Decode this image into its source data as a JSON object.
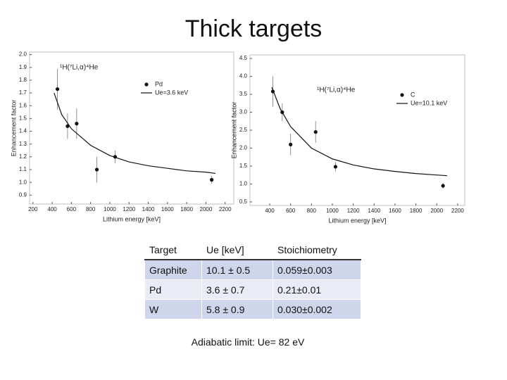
{
  "title": "Thick targets",
  "chart_data": [
    {
      "type": "scatter",
      "x_label": "Lithium energy [keV]",
      "y_label": "Enhancement factor",
      "annotation": "¹H(⁷Li,α)⁴He",
      "legend": "upper right",
      "xlim": [
        165,
        2290
      ],
      "xticks": [
        200,
        400,
        600,
        800,
        1000,
        1200,
        1400,
        1600,
        1800,
        2000,
        2200
      ],
      "ylim": [
        0.83,
        2.02
      ],
      "yticks": [
        0.9,
        {
          "value": 1.0,
          "label": "1.0"
        },
        1.1,
        1.2,
        1.3,
        1.4,
        1.5,
        1.6,
        1.7,
        1.8,
        1.9,
        {
          "value": 2.0,
          "label": "2.0"
        }
      ],
      "series": [
        {
          "name": "Pd",
          "mode": "markers",
          "color": "#111111",
          "x": [
            455,
            560,
            655,
            865,
            1055,
            2060
          ],
          "values": [
            1.73,
            1.44,
            1.46,
            1.1,
            1.2,
            1.02
          ],
          "errors": [
            0.16,
            0.1,
            0.12,
            0.1,
            0.05,
            0.03
          ]
        },
        {
          "name": "Ue=3.6 keV",
          "mode": "lines",
          "color": "#111111",
          "x": [
            420,
            500,
            600,
            800,
            1000,
            1200,
            1400,
            1600,
            1800,
            2000,
            2100
          ],
          "values": [
            1.7,
            1.53,
            1.42,
            1.29,
            1.21,
            1.16,
            1.13,
            1.11,
            1.09,
            1.08,
            1.07
          ]
        }
      ]
    },
    {
      "type": "scatter",
      "x_label": "Lithium energy [keV]",
      "y_label": "Enhancement factor",
      "annotation": "¹H(⁷Li,α)⁴He",
      "legend": "upper right",
      "xlim": [
        211,
        2268
      ],
      "xticks": [
        400,
        600,
        800,
        1000,
        1200,
        1400,
        1600,
        1800,
        2000,
        2200
      ],
      "ylim": [
        0.4,
        4.6
      ],
      "yticks": [
        0.5,
        {
          "value": 1.0,
          "label": "1.0"
        },
        1.5,
        {
          "value": 2.0,
          "label": "2.0"
        },
        2.5,
        {
          "value": 3.0,
          "label": "3.0"
        },
        3.5,
        {
          "value": 4.0,
          "label": "4.0"
        },
        4.5
      ],
      "series": [
        {
          "name": "C",
          "mode": "markers",
          "color": "#111111",
          "x": [
            430,
            520,
            600,
            840,
            1030,
            2060
          ],
          "values": [
            3.58,
            3.0,
            2.1,
            2.45,
            1.48,
            0.95
          ],
          "errors": [
            0.42,
            0.25,
            0.3,
            0.3,
            0.13,
            0.08
          ]
        },
        {
          "name": "Ue=10.1 keV",
          "mode": "lines",
          "color": "#111111",
          "x": [
            420,
            500,
            600,
            800,
            1000,
            1200,
            1400,
            1600,
            1800,
            2000,
            2100
          ],
          "values": [
            3.7,
            3.1,
            2.6,
            2.0,
            1.7,
            1.53,
            1.42,
            1.35,
            1.29,
            1.25,
            1.23
          ]
        }
      ]
    }
  ],
  "table": {
    "header": [
      "Target",
      "Ue [keV]",
      "Stoichiometry"
    ],
    "rows": [
      [
        "Graphite",
        "10.1 ± 0.5",
        "0.059±0.003"
      ],
      [
        "Pd",
        "3.6 ± 0.7",
        "0.21±0.01"
      ],
      [
        "W",
        "5.8 ± 0.9",
        "0.030±0.002"
      ]
    ]
  },
  "footnote": "Adiabatic limit: Ue= 82 eV"
}
